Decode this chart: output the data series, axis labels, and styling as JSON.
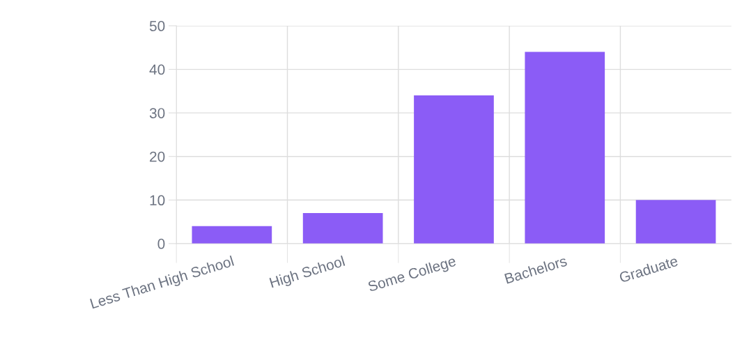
{
  "chart_data": {
    "type": "bar",
    "categories": [
      "Less Than High School",
      "High School",
      "Some College",
      "Bachelors",
      "Graduate"
    ],
    "values": [
      4,
      7,
      34,
      44,
      10
    ],
    "color": "#8b5cf6",
    "ylim": [
      0,
      50
    ],
    "yticks": [
      0,
      10,
      20,
      30,
      40,
      50
    ],
    "grid": true
  }
}
